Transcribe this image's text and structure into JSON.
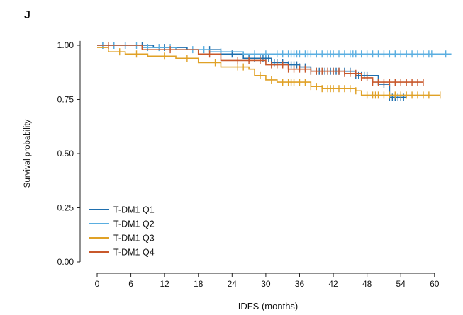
{
  "panel_label": "J",
  "chart_data": {
    "type": "line",
    "subtype": "kaplan-meier",
    "xlabel": "IDFS (months)",
    "ylabel": "Survival probability",
    "xlim": [
      -2,
      63
    ],
    "ylim": [
      0,
      1.02
    ],
    "xticks": [
      0,
      6,
      12,
      18,
      24,
      30,
      36,
      42,
      48,
      54,
      60
    ],
    "yticks": [
      0.0,
      0.25,
      0.5,
      0.75,
      1.0
    ],
    "ytick_labels": [
      "0.00",
      "0.25",
      "0.50",
      "0.75",
      "1.00"
    ],
    "legend_position": "bottom-left",
    "grid": false,
    "series": [
      {
        "name": "T-DM1 Q1",
        "color": "#1f6fae",
        "steps": [
          [
            0,
            1.0
          ],
          [
            10,
            0.99
          ],
          [
            16,
            0.98
          ],
          [
            22,
            0.96
          ],
          [
            26,
            0.94
          ],
          [
            31,
            0.92
          ],
          [
            34,
            0.91
          ],
          [
            36,
            0.9
          ],
          [
            38,
            0.88
          ],
          [
            46,
            0.86
          ],
          [
            50,
            0.82
          ],
          [
            52,
            0.76
          ],
          [
            55,
            0.76
          ]
        ],
        "censor_x": [
          1,
          2,
          3,
          5,
          8,
          12,
          20,
          24,
          27,
          28,
          29,
          29.5,
          30,
          30.5,
          31,
          31.5,
          32,
          33,
          34,
          34.5,
          35,
          35.5,
          36,
          37,
          38,
          39,
          39.5,
          40,
          40.5,
          41,
          41.5,
          42,
          42.5,
          43,
          44,
          45,
          46,
          46.5,
          47,
          47.5,
          48,
          51,
          52,
          52.5,
          53,
          53.5,
          54,
          54.5
        ]
      },
      {
        "name": "T-DM1 Q2",
        "color": "#5aaee0",
        "steps": [
          [
            0,
            1.0
          ],
          [
            8,
            0.99
          ],
          [
            14,
            0.98
          ],
          [
            20,
            0.97
          ],
          [
            26,
            0.96
          ],
          [
            63,
            0.96
          ]
        ],
        "censor_x": [
          1,
          3,
          5,
          7,
          9,
          11,
          13,
          17,
          19,
          22,
          28,
          30,
          32,
          33,
          34,
          34.5,
          35,
          35.5,
          36,
          37,
          37.5,
          38,
          39,
          40,
          41,
          41.5,
          42,
          43,
          44,
          45,
          45.5,
          46,
          47,
          48,
          49,
          50,
          51,
          52,
          53,
          54,
          55,
          56,
          57,
          58,
          59,
          59.5,
          62
        ]
      },
      {
        "name": "T-DM1 Q3",
        "color": "#e0a126",
        "steps": [
          [
            0,
            0.99
          ],
          [
            2,
            0.97
          ],
          [
            5,
            0.96
          ],
          [
            9,
            0.95
          ],
          [
            14,
            0.94
          ],
          [
            18,
            0.92
          ],
          [
            22,
            0.9
          ],
          [
            27,
            0.89
          ],
          [
            28,
            0.86
          ],
          [
            30,
            0.84
          ],
          [
            32,
            0.83
          ],
          [
            38,
            0.81
          ],
          [
            40,
            0.8
          ],
          [
            46,
            0.79
          ],
          [
            47,
            0.77
          ],
          [
            61,
            0.77
          ]
        ],
        "censor_x": [
          4,
          7,
          12,
          16,
          21,
          25,
          26,
          29,
          31,
          33,
          34,
          34.5,
          35,
          36,
          37,
          38,
          39,
          40,
          41,
          41.5,
          42,
          43,
          44,
          45,
          46,
          48,
          49,
          49.5,
          50,
          51,
          52,
          53,
          54,
          55,
          56,
          57,
          58,
          59,
          61
        ]
      },
      {
        "name": "T-DM1 Q4",
        "color": "#c8582b",
        "steps": [
          [
            0,
            1.0
          ],
          [
            8,
            0.98
          ],
          [
            18,
            0.96
          ],
          [
            22,
            0.93
          ],
          [
            30,
            0.91
          ],
          [
            34,
            0.89
          ],
          [
            38,
            0.88
          ],
          [
            44,
            0.87
          ],
          [
            47,
            0.85
          ],
          [
            49,
            0.83
          ],
          [
            58,
            0.83
          ]
        ],
        "censor_x": [
          2,
          13,
          20,
          25,
          27,
          29,
          31,
          32,
          33,
          34,
          35,
          36,
          37,
          38,
          39,
          40,
          41,
          42,
          43,
          44,
          45,
          46,
          47,
          48,
          49,
          50,
          51,
          52,
          53,
          54,
          55,
          56,
          57,
          58
        ]
      }
    ]
  }
}
